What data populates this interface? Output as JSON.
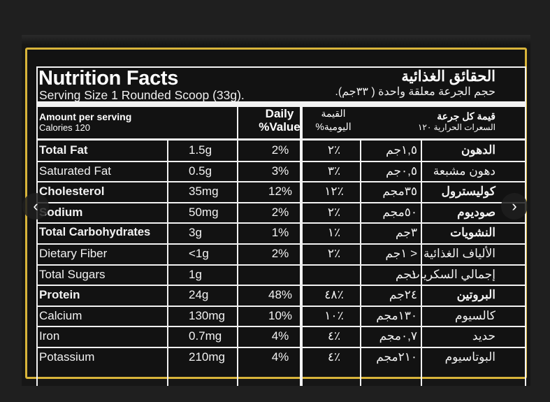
{
  "label": {
    "title": "Nutrition Facts",
    "serving": "Serving Size 1 Rounded Scoop (33g).",
    "title_ar": "الحقائق الغذائية",
    "serving_ar": "حجم الجرعة معلقة واحدة ( ٣٣جم).",
    "amount_per_serving": "Amount per serving",
    "calories": "Calories 120",
    "daily_value_1": "Daily",
    "daily_value_2": "%Value",
    "daily_value_ar_1": "القيمة",
    "daily_value_ar_2": "اليومية%",
    "amount_ar": "قيمة كل جرعة",
    "calories_ar": "السعرات الحرارية ١٢٠"
  },
  "rows": [
    {
      "name": "Total Fat",
      "bold": true,
      "amount": "1.5g",
      "dv": "2%",
      "dv_ar": "٪٢",
      "amount_ar": "١,٥جم",
      "name_ar": "الدهون"
    },
    {
      "name": "Saturated Fat",
      "bold": false,
      "amount": "0.5g",
      "dv": "3%",
      "dv_ar": "٪٣",
      "amount_ar": "٠,٥جم",
      "name_ar": "دهون مشبعة"
    },
    {
      "name": "Cholesterol",
      "bold": true,
      "amount": "35mg",
      "dv": "12%",
      "dv_ar": "٪١٢",
      "amount_ar": "٣٥مجم",
      "name_ar": "كوليسترول"
    },
    {
      "name": "Sodium",
      "bold": true,
      "amount": "50mg",
      "dv": "2%",
      "dv_ar": "٪٢",
      "amount_ar": "٥٠مجم",
      "name_ar": "صوديوم"
    },
    {
      "name": "Total Carbohydrates",
      "bold": true,
      "amount": "3g",
      "dv": "1%",
      "dv_ar": "٪١",
      "amount_ar": "٣جم",
      "name_ar": "النشويات"
    },
    {
      "name": "Dietary Fiber",
      "bold": false,
      "amount": "<1g",
      "dv": "2%",
      "dv_ar": "٪٢",
      "amount_ar": "< ١جم",
      "name_ar": "الألياف الغذائية"
    },
    {
      "name": "Total Sugars",
      "bold": false,
      "amount": "1g",
      "dv": "",
      "dv_ar": "",
      "amount_ar": "١جم",
      "name_ar": "إجمالي السكريات"
    },
    {
      "name": "Protein",
      "bold": true,
      "amount": "24g",
      "dv": "48%",
      "dv_ar": "٪٤٨",
      "amount_ar": "٢٤جم",
      "name_ar": "البروتين"
    },
    {
      "name": "Calcium",
      "bold": false,
      "amount": "130mg",
      "dv": "10%",
      "dv_ar": "٪١٠",
      "amount_ar": "١٣٠مجم",
      "name_ar": "كالسيوم"
    },
    {
      "name": "Iron",
      "bold": false,
      "amount": "0.7mg",
      "dv": "4%",
      "dv_ar": "٪٤",
      "amount_ar": "٠,٧مجم",
      "name_ar": "حديد"
    },
    {
      "name": "Potassium",
      "bold": false,
      "amount": "210mg",
      "dv": "4%",
      "dv_ar": "٪٤",
      "amount_ar": "٢١٠مجم",
      "name_ar": "البوتاسيوم"
    }
  ],
  "nav": {
    "prev_glyph": "‹",
    "next_glyph": "›"
  },
  "colors": {
    "gold_border": "#d8b43a",
    "background": "#121212",
    "text": "#f2f2f2"
  }
}
